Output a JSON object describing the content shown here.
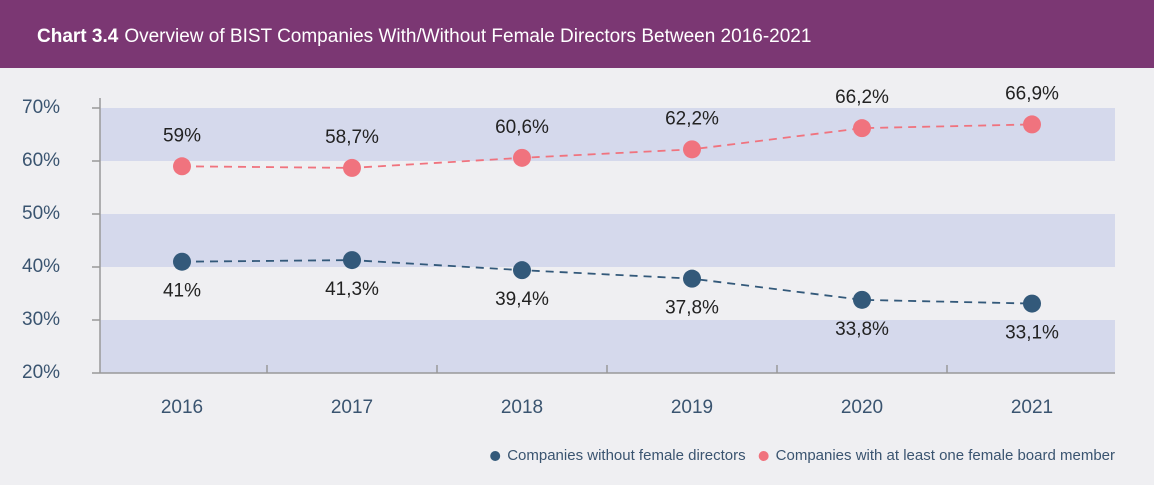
{
  "chart_data": {
    "type": "line",
    "label": "Chart 3.4",
    "title": "Overview of BIST Companies With/Without Female Directors Between 2016-2021",
    "categories": [
      "2016",
      "2017",
      "2018",
      "2019",
      "2020",
      "2021"
    ],
    "series": [
      {
        "name": "Companies without female directors",
        "color": "#33597a",
        "values": [
          41,
          41.3,
          39.4,
          37.8,
          33.8,
          33.1
        ],
        "value_labels": [
          "41%",
          "41,3%",
          "39,4%",
          "37,8%",
          "33,8%",
          "33,1%"
        ]
      },
      {
        "name": "Companies with at least one female board member",
        "color": "#f0737e",
        "values": [
          59,
          58.7,
          60.6,
          62.2,
          66.2,
          66.9
        ],
        "value_labels": [
          "59%",
          "58,7%",
          "60,6%",
          "62,2%",
          "66,2%",
          "66,9%"
        ]
      }
    ],
    "ylim": [
      20,
      70
    ],
    "yticks": [
      {
        "value": 20,
        "label": "20%"
      },
      {
        "value": 30,
        "label": "30%"
      },
      {
        "value": 40,
        "label": "40%"
      },
      {
        "value": 50,
        "label": "50%"
      },
      {
        "value": 60,
        "label": "60%"
      },
      {
        "value": 70,
        "label": "70%"
      }
    ],
    "grid": true,
    "legend": "bottom-right"
  }
}
